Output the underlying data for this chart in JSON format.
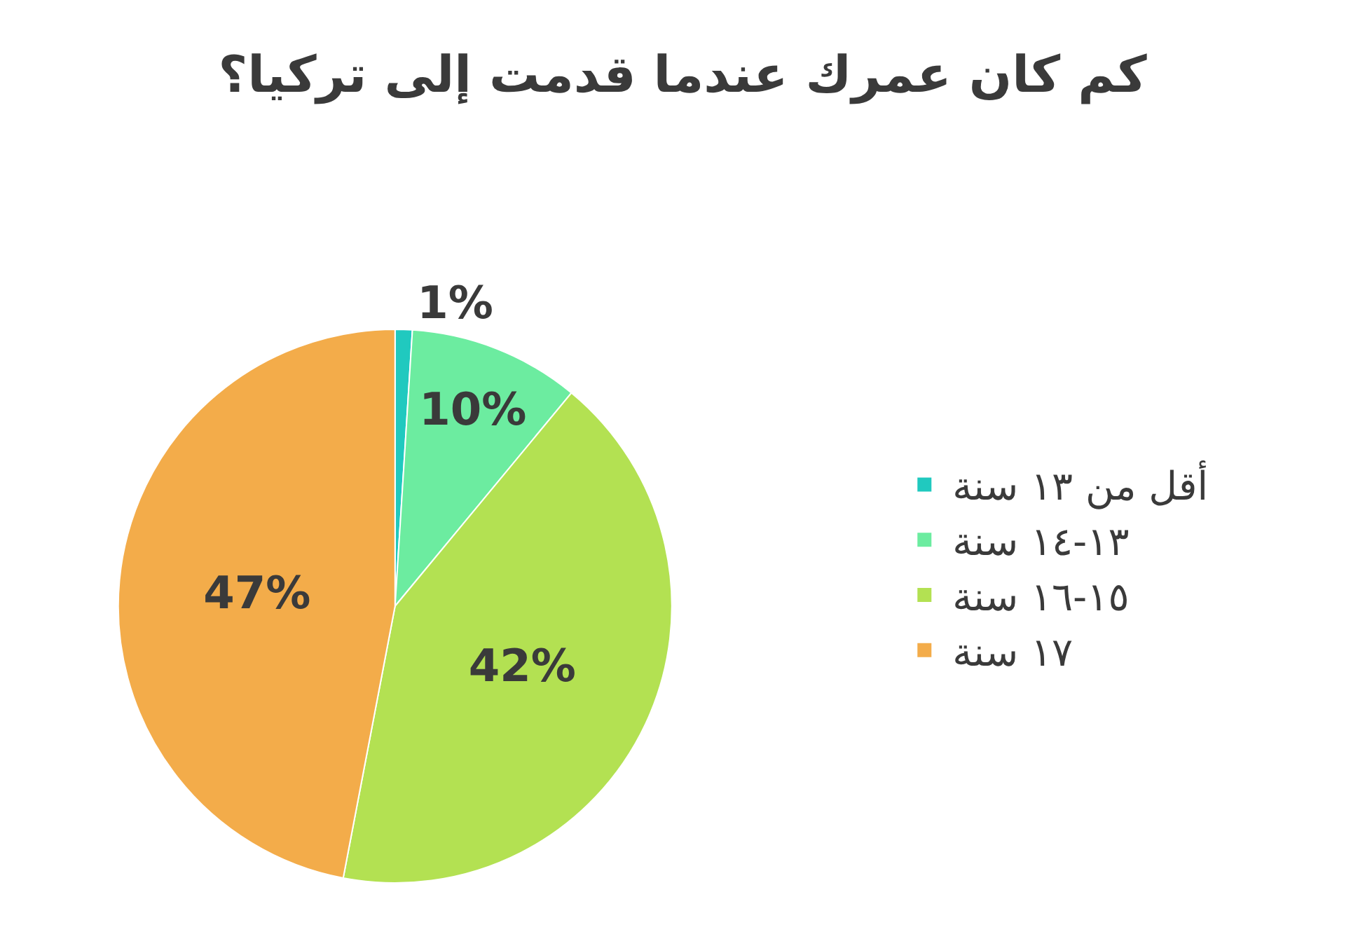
{
  "chart_data": {
    "type": "pie",
    "title": "كم كان عمرك عندما قدمت إلى تركيا؟",
    "categories": [
      "أقل من ١٣ سنة",
      "١٣-١٤ سنة",
      "١٥-١٦ سنة",
      "١٧ سنة"
    ],
    "values": [
      1,
      10,
      42,
      47
    ],
    "value_labels": [
      "1%",
      "10%",
      "42%",
      "47%"
    ],
    "colors": [
      "#20c9bf",
      "#6ceca0",
      "#b3e152",
      "#f3ac4a"
    ],
    "legend": "right"
  }
}
